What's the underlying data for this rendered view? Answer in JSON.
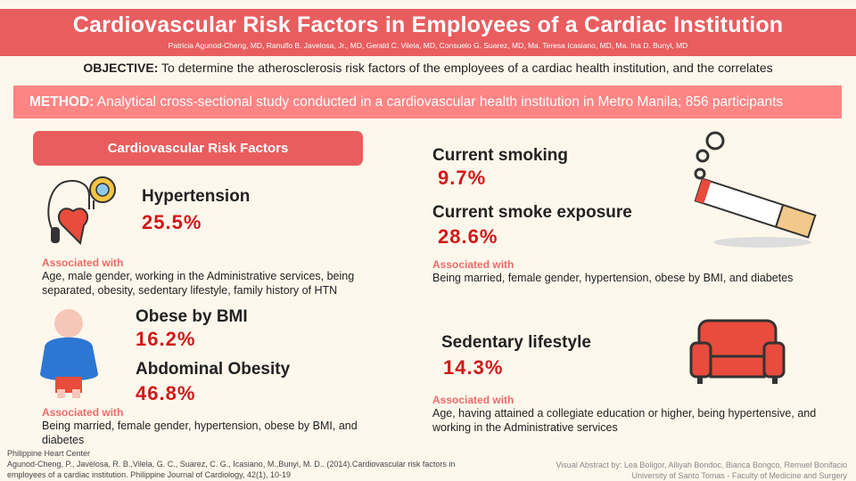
{
  "header": {
    "title": "Cardiovascular Risk Factors in Employees of a Cardiac Institution",
    "authors": "Patricia Agunod-Cheng, MD, Ranulfo B. Javelosa, Jr., MD, Gerald C. Vilela, MD, Consuelo G. Suarez, MD, Ma. Teresa Icasiano, MD, Ma. Ina D. Bunyi, MD"
  },
  "objective": {
    "label": "OBJECTIVE:",
    "text": " To determine the  atherosclerosis risk factors of the employees of a cardiac health institution, and the correlates"
  },
  "method": {
    "label": "METHOD:",
    "text": " Analytical cross-sectional study conducted in a cardiovascular health institution in Metro Manila; 856 participants"
  },
  "section_label": "Cardiovascular Risk Factors",
  "hypertension": {
    "title": "Hypertension",
    "value": "25.5%",
    "assoc_label": "Associated with",
    "assoc": "Age, male gender, working in the Administrative services, being separated, obesity, sedentary lifestyle, family history of HTN"
  },
  "obesity": {
    "title1": "Obese by BMI",
    "value1": "16.2%",
    "title2": "Abdominal Obesity",
    "value2": "46.8%",
    "assoc_label": "Associated with",
    "assoc": "Being married, female gender, hypertension, obese by BMI, and diabetes"
  },
  "smoking": {
    "title1": "Current smoking",
    "value1": "9.7%",
    "title2": "Current smoke exposure",
    "value2": "28.6%",
    "assoc_label": "Associated with",
    "assoc": "Being married, female gender, hypertension, obese by BMI, and diabetes"
  },
  "sedentary": {
    "title": "Sedentary lifestyle",
    "value": "14.3%",
    "assoc_label": "Associated with",
    "assoc": "Age, having attained a collegiate education or higher, being hypertensive, and working in the Administrative services"
  },
  "reference": {
    "line1": "Philippine Heart Center",
    "line2": "Agunod-Cheng, P., Javelosa, R. B.,Vilela, G. C., Suarez, C. G., Icasiano, M.,Bunyi, M. D.. (2014).Cardiovascular risk factors in",
    "line3": "employees of a cardiac institution. Philippine Journal of Cardiology, 42(1), 10-19"
  },
  "credits": {
    "line1": "Visual Abstract by: Lea Boligor, Alliyah Bondoc, Bianca Bongco, Remuel Bonifacio",
    "line2": "University of Santo Tomas -  Faculty of Medicine and Surgery"
  }
}
